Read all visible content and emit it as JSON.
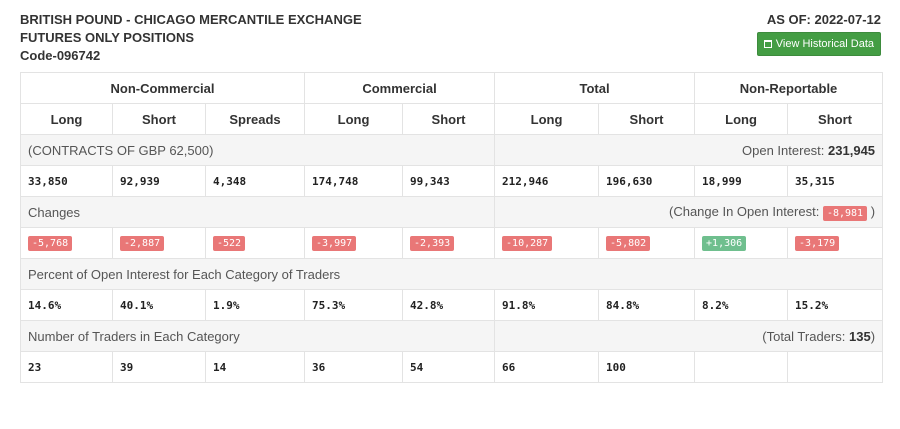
{
  "header": {
    "title_line1": "BRITISH POUND - CHICAGO MERCANTILE EXCHANGE",
    "title_line2": "FUTURES ONLY POSITIONS",
    "code": "Code-096742",
    "as_of": "AS OF: 2022-07-12",
    "historical_button": "View Historical Data"
  },
  "groups": [
    "Non-Commercial",
    "Commercial",
    "Total",
    "Non-Reportable"
  ],
  "columns": [
    "Long",
    "Short",
    "Spreads",
    "Long",
    "Short",
    "Long",
    "Short",
    "Long",
    "Short"
  ],
  "contracts": {
    "label": "(CONTRACTS OF GBP 62,500)",
    "open_interest_label": "Open Interest:",
    "open_interest_value": "231,945",
    "values": [
      "33,850",
      "92,939",
      "4,348",
      "174,748",
      "99,343",
      "212,946",
      "196,630",
      "18,999",
      "35,315"
    ]
  },
  "changes": {
    "label": "Changes",
    "oi_label": "(Change In Open Interest:",
    "oi_value": "-8,981",
    "oi_close": ")",
    "values": [
      "-5,768",
      "-2,887",
      "-522",
      "-3,997",
      "-2,393",
      "-10,287",
      "-5,802",
      "+1,306",
      "-3,179"
    ]
  },
  "percent": {
    "label": "Percent of Open Interest for Each Category of Traders",
    "values": [
      "14.6%",
      "40.1%",
      "1.9%",
      "75.3%",
      "42.8%",
      "91.8%",
      "84.8%",
      "8.2%",
      "15.2%"
    ]
  },
  "traders": {
    "label": "Number of Traders in Each Category",
    "total_label": "(Total Traders:",
    "total_value": "135",
    "total_close": ")",
    "values": [
      "23",
      "39",
      "14",
      "36",
      "54",
      "66",
      "100",
      "",
      ""
    ]
  },
  "colors": {
    "negative": "#e97777",
    "positive": "#6fbf8e",
    "button": "#449d44"
  }
}
